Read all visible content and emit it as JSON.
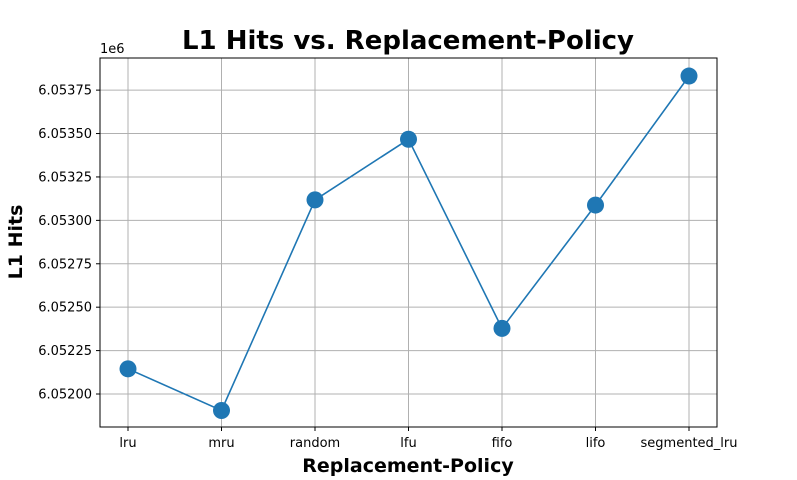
{
  "chart_data": {
    "type": "line",
    "title": "L1 Hits vs. Replacement-Policy",
    "xlabel": "Replacement-Policy",
    "ylabel": "L1 Hits",
    "y_offset_label": "1e6",
    "categories": [
      "lru",
      "mru",
      "random",
      "lfu",
      "fifo",
      "lifo",
      "segmented_lru"
    ],
    "series": [
      {
        "values": [
          6.052145,
          6.051905,
          6.053118,
          6.053467,
          6.052378,
          6.053088,
          6.053831
        ]
      }
    ],
    "ylim": [
      6.05181,
      6.053935
    ],
    "yticks": [
      6.052,
      6.05225,
      6.0525,
      6.05275,
      6.053,
      6.05325,
      6.0535,
      6.05375
    ],
    "ytick_labels": [
      "6.05200",
      "6.05225",
      "6.05250",
      "6.05275",
      "6.05300",
      "6.05325",
      "6.05350",
      "6.05375"
    ],
    "grid": true,
    "line_color": "#1f77b4",
    "marker": "circle"
  }
}
